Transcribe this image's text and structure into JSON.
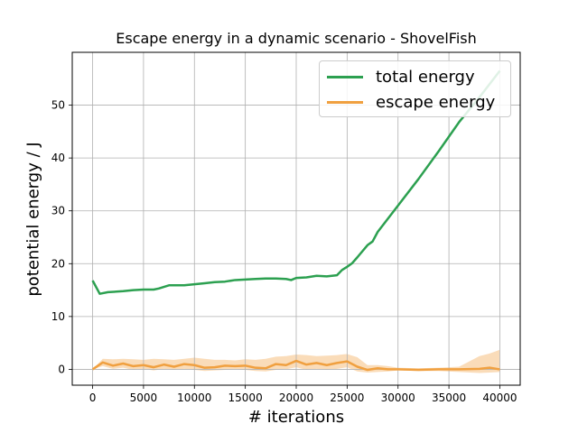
{
  "chart_data": {
    "type": "line",
    "title": "Escape energy in a dynamic scenario - ShovelFish",
    "xlabel": "# iterations",
    "ylabel": "potential energy / J",
    "xlim": [
      -2000,
      42000
    ],
    "ylim": [
      -3,
      60
    ],
    "xticks": [
      0,
      5000,
      10000,
      15000,
      20000,
      25000,
      30000,
      35000,
      40000
    ],
    "yticks": [
      0,
      10,
      20,
      30,
      40,
      50
    ],
    "grid": true,
    "legend_position": "top-right",
    "series": [
      {
        "name": "total energy",
        "color": "#2ca050",
        "x": [
          0,
          700,
          1500,
          3000,
          4000,
          5000,
          6000,
          6500,
          7000,
          7500,
          8000,
          9000,
          10000,
          11000,
          12000,
          13000,
          14000,
          15000,
          16000,
          17000,
          18000,
          19000,
          19500,
          20000,
          21000,
          22000,
          23000,
          24000,
          24500,
          25000,
          25500,
          26000,
          27000,
          27500,
          28000,
          30000,
          32000,
          34000,
          36000,
          38000,
          40000
        ],
        "y": [
          16.8,
          14.3,
          14.6,
          14.8,
          15.0,
          15.1,
          15.1,
          15.3,
          15.6,
          15.9,
          15.9,
          15.9,
          16.1,
          16.3,
          16.5,
          16.6,
          16.9,
          17.0,
          17.1,
          17.2,
          17.2,
          17.1,
          16.9,
          17.3,
          17.4,
          17.7,
          17.6,
          17.8,
          18.8,
          19.4,
          20.1,
          21.2,
          23.5,
          24.2,
          26.0,
          31.0,
          36.0,
          41.3,
          46.8,
          51.5,
          56.5
        ]
      },
      {
        "name": "escape energy",
        "color": "#f0a040",
        "band_color": "#f5c080",
        "x": [
          0,
          1000,
          2000,
          3000,
          4000,
          5000,
          6000,
          7000,
          8000,
          9000,
          10000,
          11000,
          12000,
          13000,
          14000,
          15000,
          16000,
          17000,
          18000,
          19000,
          20000,
          21000,
          22000,
          23000,
          24000,
          25000,
          26000,
          27000,
          28000,
          29000,
          30000,
          32000,
          34000,
          36000,
          38000,
          39000,
          40000
        ],
        "y": [
          0.0,
          1.3,
          0.7,
          1.1,
          0.6,
          0.8,
          0.4,
          0.9,
          0.5,
          1.0,
          0.8,
          0.3,
          0.4,
          0.7,
          0.6,
          0.7,
          0.3,
          0.2,
          1.0,
          0.8,
          1.6,
          0.9,
          1.2,
          0.8,
          1.2,
          1.5,
          0.5,
          -0.1,
          0.2,
          0.0,
          0.0,
          -0.1,
          0.0,
          0.0,
          0.1,
          0.3,
          0.0
        ],
        "upper": [
          0.0,
          2.0,
          1.9,
          2.0,
          1.9,
          1.8,
          2.0,
          1.9,
          1.8,
          2.0,
          2.2,
          2.0,
          1.8,
          1.8,
          1.7,
          1.9,
          1.8,
          2.0,
          2.4,
          2.5,
          2.8,
          2.7,
          2.5,
          2.6,
          2.7,
          2.9,
          2.3,
          0.8,
          0.8,
          0.6,
          0.3,
          0.2,
          0.3,
          0.5,
          2.5,
          3.0,
          3.7
        ],
        "lower": [
          0.0,
          0.6,
          0.1,
          0.3,
          -0.1,
          0.1,
          -0.2,
          0.1,
          -0.1,
          0.1,
          -0.1,
          -0.3,
          -0.2,
          -0.1,
          0.0,
          -0.1,
          -0.3,
          -0.4,
          -0.1,
          0.0,
          0.4,
          -0.1,
          0.1,
          -0.1,
          0.1,
          0.4,
          -0.4,
          -0.6,
          -0.5,
          -0.4,
          -0.2,
          -0.3,
          -0.3,
          -0.5,
          -0.7,
          -0.6,
          -0.5
        ]
      }
    ]
  }
}
